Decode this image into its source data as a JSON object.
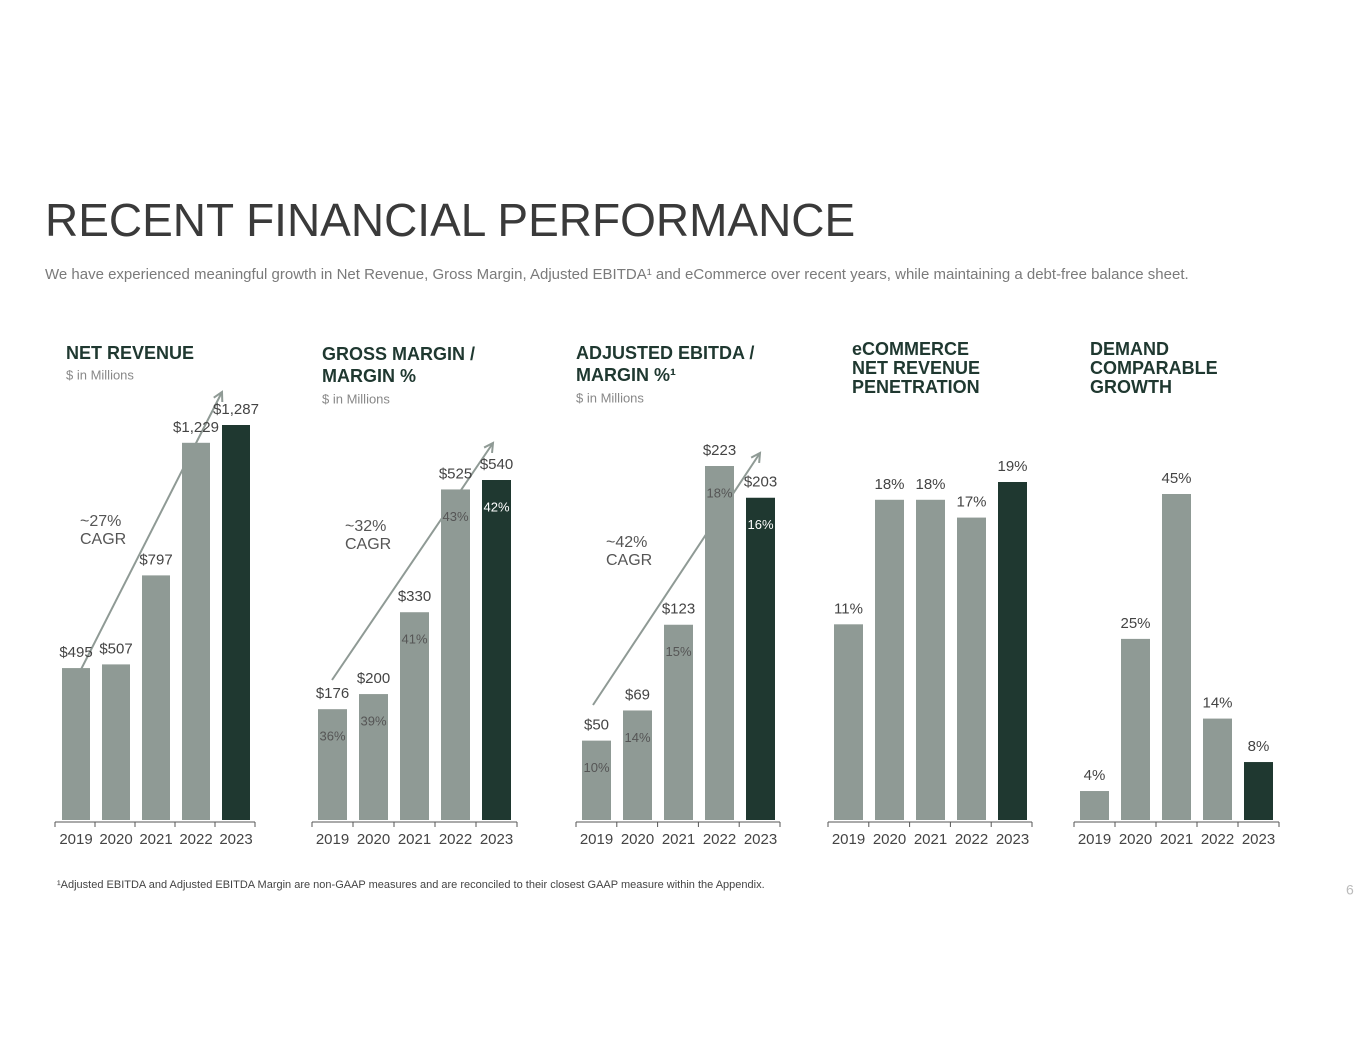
{
  "header": {
    "title": "RECENT FINANCIAL PERFORMANCE",
    "subtitle": "We have experienced meaningful growth in Net Revenue, Gross Margin, Adjusted EBITDA¹ and eCommerce over recent years, while maintaining a debt-free balance sheet."
  },
  "footnote": "¹Adjusted EBITDA and Adjusted EBITDA Margin are non-GAAP measures and are reconciled to their closest GAAP measure within the Appendix.",
  "page_number": "6",
  "chart_data": [
    {
      "type": "bar",
      "title": "NET REVENUE",
      "subtitle": "$ in Millions",
      "annotation": "~27%\nCAGR",
      "categories": [
        "2019",
        "2020",
        "2021",
        "2022",
        "2023"
      ],
      "values": [
        495,
        507,
        797,
        1229,
        1287
      ],
      "value_labels": [
        "$495",
        "$507",
        "$797",
        "$1,229",
        "$1,287"
      ],
      "colors": [
        "#8f9a95",
        "#8f9a95",
        "#8f9a95",
        "#8f9a95",
        "#1f3830"
      ]
    },
    {
      "type": "bar",
      "title": "GROSS MARGIN /\nMARGIN %",
      "subtitle": "$ in Millions",
      "annotation": "~32%\nCAGR",
      "categories": [
        "2019",
        "2020",
        "2021",
        "2022",
        "2023"
      ],
      "values": [
        176,
        200,
        330,
        525,
        540
      ],
      "value_labels": [
        "$176",
        "$200",
        "$330",
        "$525",
        "$540"
      ],
      "inner_values": [
        36,
        39,
        41,
        43,
        42
      ],
      "inner_value_labels": [
        "36%",
        "39%",
        "41%",
        "43%",
        "42%"
      ],
      "colors": [
        "#8f9a95",
        "#8f9a95",
        "#8f9a95",
        "#8f9a95",
        "#1f3830"
      ]
    },
    {
      "type": "bar",
      "title": "ADJUSTED EBITDA /\nMARGIN %¹",
      "subtitle": "$ in Millions",
      "annotation": "~42%\nCAGR",
      "categories": [
        "2019",
        "2020",
        "2021",
        "2022",
        "2023"
      ],
      "values": [
        50,
        69,
        123,
        223,
        203
      ],
      "value_labels": [
        "$50",
        "$69",
        "$123",
        "$223",
        "$203"
      ],
      "inner_values": [
        10,
        14,
        15,
        18,
        16
      ],
      "inner_value_labels": [
        "10%",
        "14%",
        "15%",
        "18%",
        "16%"
      ],
      "colors": [
        "#8f9a95",
        "#8f9a95",
        "#8f9a95",
        "#8f9a95",
        "#1f3830"
      ]
    },
    {
      "type": "bar",
      "title": "eCOMMERCE\nNET REVENUE\nPENETRATION",
      "categories": [
        "2019",
        "2020",
        "2021",
        "2022",
        "2023"
      ],
      "values": [
        11,
        18,
        18,
        17,
        19
      ],
      "value_labels": [
        "11%",
        "18%",
        "18%",
        "17%",
        "19%"
      ],
      "colors": [
        "#8f9a95",
        "#8f9a95",
        "#8f9a95",
        "#8f9a95",
        "#1f3830"
      ]
    },
    {
      "type": "bar",
      "title": "DEMAND\nCOMPARABLE\nGROWTH",
      "categories": [
        "2019",
        "2020",
        "2021",
        "2022",
        "2023"
      ],
      "values": [
        4,
        25,
        45,
        14,
        8
      ],
      "value_labels": [
        "4%",
        "25%",
        "45%",
        "14%",
        "8%"
      ],
      "colors": [
        "#8f9a95",
        "#8f9a95",
        "#8f9a95",
        "#8f9a95",
        "#1f3830"
      ]
    }
  ]
}
